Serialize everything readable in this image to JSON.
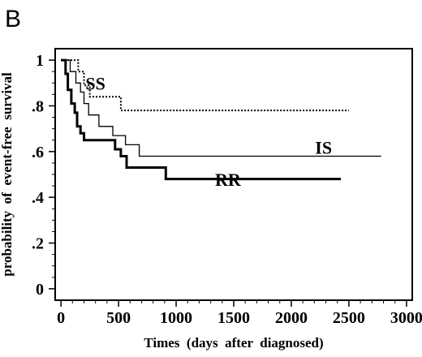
{
  "chart_data": {
    "type": "line",
    "step": true,
    "panel_label": "B",
    "title": "",
    "xlabel": "Times  (days  after  diagnosed)",
    "ylabel": "probability  of  event-free  survival",
    "xlim": [
      -50,
      3050
    ],
    "ylim": [
      -0.05,
      1.05
    ],
    "x_ticks": [
      0,
      500,
      1000,
      1500,
      2000,
      2500,
      3000
    ],
    "x_tick_labels": [
      "0",
      "500",
      "1000",
      "1500",
      "2000",
      "2500",
      "3000"
    ],
    "y_ticks": [
      0,
      0.2,
      0.4,
      0.6,
      0.8,
      1.0
    ],
    "y_tick_labels": [
      "0",
      ".2",
      ".4",
      ".6",
      ".8",
      "1"
    ],
    "grid": false,
    "legend": "direct labels on lines",
    "series": [
      {
        "name": "SS",
        "style": "dotted",
        "label_at": [
          300,
          0.87
        ],
        "points": [
          [
            0,
            1.0
          ],
          [
            150,
            1.0
          ],
          [
            150,
            0.95
          ],
          [
            200,
            0.95
          ],
          [
            200,
            0.89
          ],
          [
            250,
            0.89
          ],
          [
            250,
            0.84
          ],
          [
            520,
            0.84
          ],
          [
            520,
            0.78
          ],
          [
            2500,
            0.78
          ]
        ]
      },
      {
        "name": "IS",
        "style": "thin",
        "label_at": [
          2280,
          0.59
        ],
        "points": [
          [
            0,
            1.0
          ],
          [
            80,
            1.0
          ],
          [
            80,
            0.95
          ],
          [
            130,
            0.95
          ],
          [
            130,
            0.9
          ],
          [
            170,
            0.9
          ],
          [
            170,
            0.86
          ],
          [
            200,
            0.86
          ],
          [
            200,
            0.81
          ],
          [
            240,
            0.81
          ],
          [
            240,
            0.76
          ],
          [
            330,
            0.76
          ],
          [
            330,
            0.71
          ],
          [
            450,
            0.71
          ],
          [
            450,
            0.67
          ],
          [
            560,
            0.67
          ],
          [
            560,
            0.63
          ],
          [
            680,
            0.63
          ],
          [
            680,
            0.58
          ],
          [
            2780,
            0.58
          ]
        ]
      },
      {
        "name": "RR",
        "style": "thick",
        "label_at": [
          1450,
          0.45
        ],
        "points": [
          [
            0,
            1.0
          ],
          [
            40,
            1.0
          ],
          [
            40,
            0.94
          ],
          [
            60,
            0.94
          ],
          [
            60,
            0.87
          ],
          [
            90,
            0.87
          ],
          [
            90,
            0.81
          ],
          [
            120,
            0.81
          ],
          [
            120,
            0.77
          ],
          [
            140,
            0.77
          ],
          [
            140,
            0.71
          ],
          [
            170,
            0.71
          ],
          [
            170,
            0.68
          ],
          [
            200,
            0.68
          ],
          [
            200,
            0.65
          ],
          [
            470,
            0.65
          ],
          [
            470,
            0.61
          ],
          [
            520,
            0.61
          ],
          [
            520,
            0.58
          ],
          [
            570,
            0.58
          ],
          [
            570,
            0.53
          ],
          [
            910,
            0.53
          ],
          [
            910,
            0.48
          ],
          [
            2430,
            0.48
          ]
        ]
      }
    ]
  }
}
